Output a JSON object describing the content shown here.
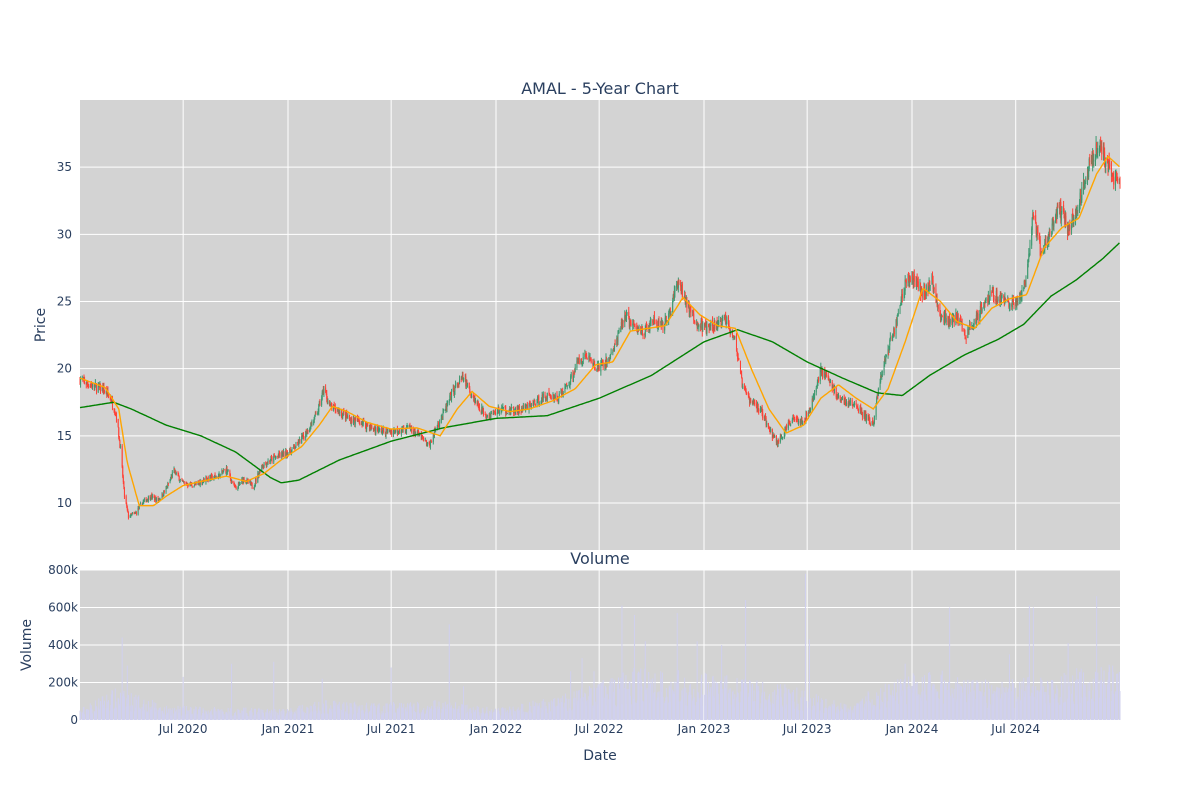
{
  "chart_data": [
    {
      "type": "candlestick",
      "title": "AMAL - 5-Year Chart",
      "xlabel": "",
      "ylabel": "Price",
      "x_range": [
        "2020-01-02",
        "2024-12-31"
      ],
      "ylim": [
        6.5,
        40.0
      ],
      "y_ticks": [
        10,
        15,
        20,
        25,
        30,
        35
      ],
      "grid": true,
      "background": "#d3d3d3",
      "colors": {
        "up": "#3d9970",
        "down": "#ff4136",
        "ma_short": "#ffa500",
        "ma_long": "#008000"
      },
      "close_anchors": [
        [
          "2020-01-02",
          19.2
        ],
        [
          "2020-01-20",
          18.8
        ],
        [
          "2020-02-10",
          18.5
        ],
        [
          "2020-02-25",
          17.8
        ],
        [
          "2020-03-06",
          16.5
        ],
        [
          "2020-03-13",
          14.0
        ],
        [
          "2020-03-20",
          10.5
        ],
        [
          "2020-03-27",
          9.0
        ],
        [
          "2020-04-08",
          9.2
        ],
        [
          "2020-04-20",
          10.0
        ],
        [
          "2020-05-04",
          10.5
        ],
        [
          "2020-05-18",
          10.2
        ],
        [
          "2020-06-01",
          11.0
        ],
        [
          "2020-06-15",
          12.4
        ],
        [
          "2020-06-30",
          11.5
        ],
        [
          "2020-07-20",
          11.3
        ],
        [
          "2020-08-10",
          11.8
        ],
        [
          "2020-09-01",
          12.0
        ],
        [
          "2020-09-15",
          12.5
        ],
        [
          "2020-10-01",
          11.0
        ],
        [
          "2020-10-15",
          11.8
        ],
        [
          "2020-11-01",
          11.2
        ],
        [
          "2020-11-16",
          12.8
        ],
        [
          "2020-12-01",
          13.2
        ],
        [
          "2020-12-15",
          13.5
        ],
        [
          "2021-01-04",
          13.8
        ],
        [
          "2021-01-20",
          14.5
        ],
        [
          "2021-02-05",
          15.5
        ],
        [
          "2021-02-20",
          16.5
        ],
        [
          "2021-03-05",
          18.5
        ],
        [
          "2021-03-15",
          17.2
        ],
        [
          "2021-04-01",
          16.8
        ],
        [
          "2021-04-20",
          16.2
        ],
        [
          "2021-05-10",
          16.0
        ],
        [
          "2021-06-01",
          15.5
        ],
        [
          "2021-06-20",
          15.3
        ],
        [
          "2021-07-10",
          15.4
        ],
        [
          "2021-08-01",
          15.6
        ],
        [
          "2021-08-20",
          15.0
        ],
        [
          "2021-09-05",
          14.2
        ],
        [
          "2021-09-20",
          15.8
        ],
        [
          "2021-10-05",
          17.0
        ],
        [
          "2021-10-20",
          18.5
        ],
        [
          "2021-11-05",
          19.3
        ],
        [
          "2021-11-20",
          18.0
        ],
        [
          "2021-12-05",
          17.0
        ],
        [
          "2021-12-20",
          16.5
        ],
        [
          "2022-01-10",
          17.0
        ],
        [
          "2022-02-01",
          16.8
        ],
        [
          "2022-02-20",
          17.0
        ],
        [
          "2022-03-10",
          17.5
        ],
        [
          "2022-04-01",
          18.0
        ],
        [
          "2022-04-20",
          17.8
        ],
        [
          "2022-05-10",
          19.0
        ],
        [
          "2022-05-25",
          20.5
        ],
        [
          "2022-06-10",
          21.0
        ],
        [
          "2022-06-25",
          20.0
        ],
        [
          "2022-07-15",
          20.5
        ],
        [
          "2022-08-01",
          22.0
        ],
        [
          "2022-08-15",
          24.0
        ],
        [
          "2022-09-01",
          23.0
        ],
        [
          "2022-09-20",
          22.8
        ],
        [
          "2022-10-05",
          23.5
        ],
        [
          "2022-10-20",
          23.0
        ],
        [
          "2022-11-05",
          24.5
        ],
        [
          "2022-11-15",
          26.5
        ],
        [
          "2022-12-01",
          25.0
        ],
        [
          "2022-12-15",
          23.5
        ],
        [
          "2023-01-05",
          23.0
        ],
        [
          "2023-01-25",
          23.2
        ],
        [
          "2023-02-10",
          23.8
        ],
        [
          "2023-02-25",
          22.0
        ],
        [
          "2023-03-10",
          18.5
        ],
        [
          "2023-03-25",
          17.5
        ],
        [
          "2023-04-10",
          17.0
        ],
        [
          "2023-04-25",
          15.5
        ],
        [
          "2023-05-10",
          14.5
        ],
        [
          "2023-05-25",
          15.5
        ],
        [
          "2023-06-10",
          16.5
        ],
        [
          "2023-06-25",
          16.0
        ],
        [
          "2023-07-10",
          17.5
        ],
        [
          "2023-07-25",
          20.0
        ],
        [
          "2023-08-10",
          19.0
        ],
        [
          "2023-08-25",
          17.8
        ],
        [
          "2023-09-10",
          17.5
        ],
        [
          "2023-09-25",
          17.2
        ],
        [
          "2023-10-10",
          16.5
        ],
        [
          "2023-10-25",
          15.8
        ],
        [
          "2023-11-05",
          19.0
        ],
        [
          "2023-11-20",
          21.5
        ],
        [
          "2023-12-05",
          23.5
        ],
        [
          "2023-12-20",
          26.5
        ],
        [
          "2024-01-05",
          26.8
        ],
        [
          "2024-01-20",
          25.5
        ],
        [
          "2024-02-05",
          26.5
        ],
        [
          "2024-02-20",
          24.0
        ],
        [
          "2024-03-05",
          23.5
        ],
        [
          "2024-03-20",
          23.8
        ],
        [
          "2024-04-05",
          22.5
        ],
        [
          "2024-04-20",
          23.5
        ],
        [
          "2024-05-05",
          25.0
        ],
        [
          "2024-05-20",
          25.5
        ],
        [
          "2024-06-05",
          25.3
        ],
        [
          "2024-06-20",
          24.8
        ],
        [
          "2024-07-05",
          25.0
        ],
        [
          "2024-07-20",
          26.5
        ],
        [
          "2024-08-01",
          31.5
        ],
        [
          "2024-08-15",
          28.5
        ],
        [
          "2024-08-30",
          30.0
        ],
        [
          "2024-09-15",
          32.0
        ],
        [
          "2024-10-01",
          30.5
        ],
        [
          "2024-10-15",
          31.5
        ],
        [
          "2024-10-30",
          34.0
        ],
        [
          "2024-11-10",
          35.5
        ],
        [
          "2024-11-20",
          36.5
        ],
        [
          "2024-12-01",
          36.0
        ],
        [
          "2024-12-15",
          34.5
        ],
        [
          "2024-12-31",
          33.5
        ]
      ],
      "ma_short_anchors": [
        [
          "2020-01-02",
          19.3
        ],
        [
          "2020-02-15",
          18.6
        ],
        [
          "2020-03-10",
          17.0
        ],
        [
          "2020-03-25",
          13.0
        ],
        [
          "2020-04-15",
          9.8
        ],
        [
          "2020-05-10",
          9.8
        ],
        [
          "2020-06-01",
          10.5
        ],
        [
          "2020-07-01",
          11.3
        ],
        [
          "2020-08-01",
          11.6
        ],
        [
          "2020-09-15",
          12.0
        ],
        [
          "2020-10-20",
          11.6
        ],
        [
          "2020-11-20",
          12.2
        ],
        [
          "2020-12-20",
          13.2
        ],
        [
          "2021-01-25",
          14.2
        ],
        [
          "2021-02-25",
          15.8
        ],
        [
          "2021-03-20",
          17.2
        ],
        [
          "2021-04-15",
          16.8
        ],
        [
          "2021-05-20",
          16.0
        ],
        [
          "2021-07-01",
          15.5
        ],
        [
          "2021-08-15",
          15.6
        ],
        [
          "2021-09-25",
          15.0
        ],
        [
          "2021-10-25",
          17.0
        ],
        [
          "2021-11-20",
          18.3
        ],
        [
          "2021-12-20",
          17.2
        ],
        [
          "2022-01-25",
          16.8
        ],
        [
          "2022-03-01",
          17.0
        ],
        [
          "2022-04-10",
          17.6
        ],
        [
          "2022-05-20",
          18.5
        ],
        [
          "2022-06-25",
          20.3
        ],
        [
          "2022-07-25",
          20.5
        ],
        [
          "2022-08-25",
          22.8
        ],
        [
          "2022-09-25",
          23.0
        ],
        [
          "2022-10-25",
          23.2
        ],
        [
          "2022-11-25",
          25.3
        ],
        [
          "2022-12-25",
          24.0
        ],
        [
          "2023-01-25",
          23.2
        ],
        [
          "2023-02-25",
          23.0
        ],
        [
          "2023-03-25",
          20.0
        ],
        [
          "2023-04-25",
          17.0
        ],
        [
          "2023-05-25",
          15.2
        ],
        [
          "2023-06-25",
          15.8
        ],
        [
          "2023-07-25",
          17.8
        ],
        [
          "2023-08-25",
          18.8
        ],
        [
          "2023-09-25",
          17.8
        ],
        [
          "2023-10-25",
          17.0
        ],
        [
          "2023-11-20",
          18.5
        ],
        [
          "2023-12-20",
          22.0
        ],
        [
          "2024-01-20",
          26.0
        ],
        [
          "2024-02-20",
          25.0
        ],
        [
          "2024-03-20",
          23.5
        ],
        [
          "2024-04-20",
          23.0
        ],
        [
          "2024-05-20",
          24.5
        ],
        [
          "2024-06-20",
          25.2
        ],
        [
          "2024-07-20",
          25.5
        ],
        [
          "2024-08-20",
          29.0
        ],
        [
          "2024-09-20",
          30.5
        ],
        [
          "2024-10-20",
          31.2
        ],
        [
          "2024-11-20",
          34.5
        ],
        [
          "2024-12-10",
          35.8
        ],
        [
          "2024-12-31",
          35.0
        ]
      ],
      "ma_long_anchors": [
        [
          "2020-01-02",
          17.1
        ],
        [
          "2020-03-01",
          17.5
        ],
        [
          "2020-04-01",
          17.0
        ],
        [
          "2020-06-01",
          15.8
        ],
        [
          "2020-08-01",
          15.0
        ],
        [
          "2020-10-01",
          13.8
        ],
        [
          "2020-12-01",
          11.9
        ],
        [
          "2020-12-20",
          11.5
        ],
        [
          "2021-01-20",
          11.7
        ],
        [
          "2021-04-01",
          13.2
        ],
        [
          "2021-07-01",
          14.6
        ],
        [
          "2021-10-01",
          15.6
        ],
        [
          "2022-01-01",
          16.3
        ],
        [
          "2022-04-01",
          16.5
        ],
        [
          "2022-07-01",
          17.8
        ],
        [
          "2022-10-01",
          19.5
        ],
        [
          "2023-01-01",
          22.0
        ],
        [
          "2023-03-01",
          22.9
        ],
        [
          "2023-05-01",
          22.0
        ],
        [
          "2023-07-01",
          20.5
        ],
        [
          "2023-09-01",
          19.3
        ],
        [
          "2023-11-01",
          18.2
        ],
        [
          "2023-12-15",
          18.0
        ],
        [
          "2024-02-01",
          19.5
        ],
        [
          "2024-04-01",
          21.0
        ],
        [
          "2024-06-01",
          22.2
        ],
        [
          "2024-07-15",
          23.3
        ],
        [
          "2024-09-01",
          25.4
        ],
        [
          "2024-10-15",
          26.6
        ],
        [
          "2024-12-01",
          28.2
        ],
        [
          "2024-12-31",
          29.4
        ]
      ]
    },
    {
      "type": "bar",
      "title": "Volume",
      "xlabel": "Date",
      "ylabel": "Volume",
      "ylim": [
        0,
        800000
      ],
      "y_ticks": [
        0,
        200000,
        400000,
        600000,
        800000
      ],
      "y_tick_labels": [
        "0",
        "200k",
        "400k",
        "600k",
        "800k"
      ],
      "x_ticks": [
        "2020-07-01",
        "2021-01-01",
        "2021-07-01",
        "2022-01-01",
        "2022-07-01",
        "2023-01-01",
        "2023-07-01",
        "2024-01-01",
        "2024-07-01"
      ],
      "x_tick_labels": [
        "Jul 2020",
        "Jan 2021",
        "Jul 2021",
        "Jan 2022",
        "Jul 2022",
        "Jan 2023",
        "Jul 2023",
        "Jan 2024",
        "Jul 2024"
      ],
      "grid": true,
      "background": "#d3d3d3",
      "bar_color": "#d0d0ee",
      "base_level_anchors": [
        [
          "2020-01-02",
          40000
        ],
        [
          "2020-03-01",
          110000
        ],
        [
          "2020-04-15",
          90000
        ],
        [
          "2020-06-01",
          50000
        ],
        [
          "2020-12-31",
          40000
        ],
        [
          "2021-03-01",
          70000
        ],
        [
          "2021-06-01",
          60000
        ],
        [
          "2021-10-01",
          70000
        ],
        [
          "2022-01-01",
          40000
        ],
        [
          "2022-05-01",
          90000
        ],
        [
          "2022-09-01",
          180000
        ],
        [
          "2022-12-01",
          170000
        ],
        [
          "2023-03-01",
          150000
        ],
        [
          "2023-06-01",
          120000
        ],
        [
          "2023-09-01",
          60000
        ],
        [
          "2023-12-01",
          140000
        ],
        [
          "2024-02-01",
          180000
        ],
        [
          "2024-06-01",
          130000
        ],
        [
          "2024-09-01",
          170000
        ],
        [
          "2024-12-31",
          200000
        ]
      ],
      "spikes": [
        [
          "2020-03-16",
          440000
        ],
        [
          "2020-03-25",
          290000
        ],
        [
          "2020-07-01",
          230000
        ],
        [
          "2020-09-24",
          300000
        ],
        [
          "2020-12-07",
          310000
        ],
        [
          "2021-03-02",
          220000
        ],
        [
          "2021-07-01",
          280000
        ],
        [
          "2021-10-11",
          510000
        ],
        [
          "2021-11-05",
          180000
        ],
        [
          "2022-05-12",
          260000
        ],
        [
          "2022-06-01",
          330000
        ],
        [
          "2022-06-22",
          260000
        ],
        [
          "2022-08-10",
          610000
        ],
        [
          "2022-09-01",
          560000
        ],
        [
          "2022-09-20",
          420000
        ],
        [
          "2022-11-15",
          570000
        ],
        [
          "2022-12-20",
          420000
        ],
        [
          "2023-02-01",
          400000
        ],
        [
          "2023-03-15",
          640000
        ],
        [
          "2023-06-28",
          780000
        ],
        [
          "2023-07-05",
          430000
        ],
        [
          "2023-12-20",
          300000
        ],
        [
          "2024-01-20",
          410000
        ],
        [
          "2024-03-07",
          600000
        ],
        [
          "2024-06-20",
          350000
        ],
        [
          "2024-07-25",
          610000
        ],
        [
          "2024-08-01",
          600000
        ],
        [
          "2024-10-01",
          410000
        ],
        [
          "2024-11-20",
          660000
        ],
        [
          "2024-12-01",
          290000
        ],
        [
          "2024-12-18",
          290000
        ]
      ]
    }
  ]
}
